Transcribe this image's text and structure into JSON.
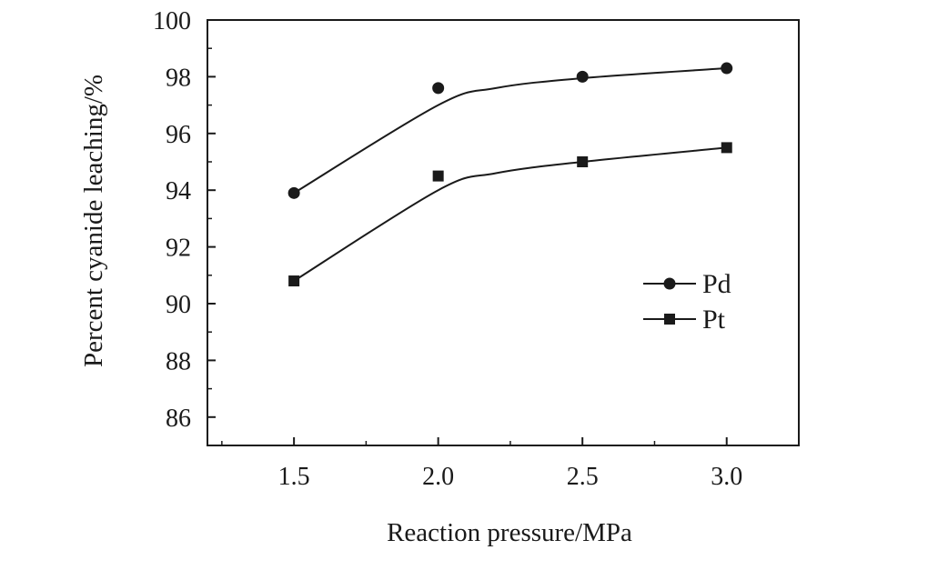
{
  "chart_data": {
    "type": "line",
    "title": "",
    "xlabel": "Reaction pressure/MPa",
    "ylabel": "Percent cyanide leaching/%",
    "xlim": [
      1.2,
      3.25
    ],
    "ylim": [
      85,
      100
    ],
    "x_ticks": [
      1.5,
      2.0,
      2.5,
      3.0
    ],
    "x_tick_labels": [
      "1.5",
      "2.0",
      "2.5",
      "3.0"
    ],
    "y_ticks": [
      86,
      88,
      90,
      92,
      94,
      96,
      98,
      100
    ],
    "y_tick_labels": [
      "86",
      "88",
      "90",
      "92",
      "94",
      "96",
      "98",
      "100"
    ],
    "grid": false,
    "legend_position": "right",
    "series": [
      {
        "name": "Pd",
        "marker": "circle",
        "x": [
          1.5,
          2.0,
          2.5,
          3.0
        ],
        "y": [
          93.9,
          97.6,
          98.0,
          98.3
        ],
        "fit_curve": [
          [
            1.5,
            93.9
          ],
          [
            2.0,
            97.0
          ],
          [
            2.2,
            97.6
          ],
          [
            2.5,
            97.95
          ],
          [
            3.0,
            98.3
          ]
        ]
      },
      {
        "name": "Pt",
        "marker": "square",
        "x": [
          1.5,
          2.0,
          2.5,
          3.0
        ],
        "y": [
          90.8,
          94.5,
          95.0,
          95.5
        ],
        "fit_curve": [
          [
            1.5,
            90.8
          ],
          [
            2.0,
            94.0
          ],
          [
            2.2,
            94.6
          ],
          [
            2.5,
            95.0
          ],
          [
            3.0,
            95.5
          ]
        ]
      }
    ]
  }
}
